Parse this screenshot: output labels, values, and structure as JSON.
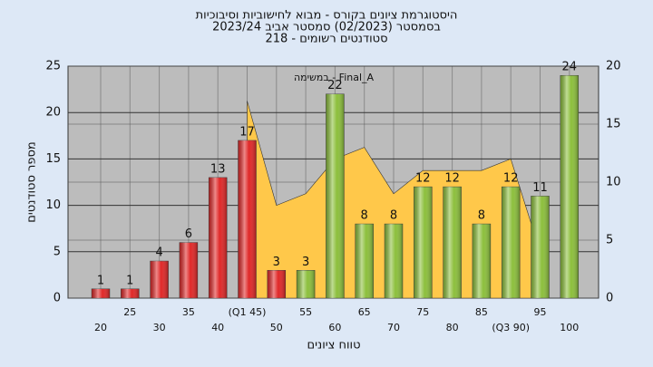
{
  "chart_data": {
    "type": "bar",
    "title": [
      "היסטוגרמת ציונים בקורס - מבוא לחישוביות וסיבוכיות",
      "בסמסטר  (02/2023)  סמסטר אביב 2023/24",
      "סטודנטים רשומים - 218"
    ],
    "annotation": "במשימה - Final_A",
    "x_label": "טווח ציונים",
    "y_label": "מספר סטודנטים",
    "categories": [
      "20",
      "25",
      "30",
      "35",
      "40",
      "(Q1 45)",
      "50",
      "55",
      "60",
      "65",
      "70",
      "75",
      "80",
      "85",
      "(Q3 90)",
      "95",
      "100"
    ],
    "values": [
      1,
      1,
      4,
      6,
      13,
      17,
      3,
      3,
      22,
      8,
      8,
      12,
      12,
      8,
      12,
      11,
      24
    ],
    "colors": [
      "#e02828",
      "#e02828",
      "#e02828",
      "#e02828",
      "#e02828",
      "#e02828",
      "#e02828",
      "#8cbf3c",
      "#8cbf3c",
      "#8cbf3c",
      "#8cbf3c",
      "#8cbf3c",
      "#8cbf3c",
      "#8cbf3c",
      "#8cbf3c",
      "#8cbf3c",
      "#8cbf3c"
    ],
    "area": {
      "axis": "y2",
      "color": "#ffc84a",
      "values": [
        null,
        null,
        null,
        null,
        null,
        17,
        8,
        9,
        12,
        13,
        9,
        11,
        11,
        11,
        12,
        4,
        null
      ]
    },
    "ylim": [
      0,
      25
    ],
    "yticks": [
      0,
      5,
      10,
      15,
      20,
      25
    ],
    "y2lim": [
      0,
      20
    ],
    "y2ticks": [
      0,
      5,
      10,
      15,
      20
    ],
    "grid": true
  }
}
